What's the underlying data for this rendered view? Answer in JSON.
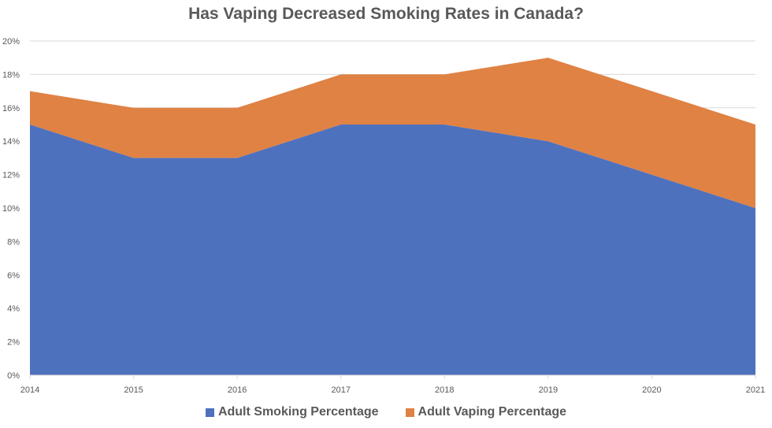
{
  "title": "Has Vaping Decreased Smoking Rates in Canada?",
  "legend": [
    {
      "label": "Adult Smoking Percentage",
      "color": "#4e71be"
    },
    {
      "label": "Adult Vaping Percentage",
      "color": "#df8244"
    }
  ],
  "chart_data": {
    "type": "area",
    "stacked": true,
    "title": "Has Vaping Decreased Smoking Rates in Canada?",
    "xlabel": "",
    "ylabel": "",
    "categories": [
      "2014",
      "2015",
      "2016",
      "2017",
      "2018",
      "2019",
      "2020",
      "2021"
    ],
    "series": [
      {
        "name": "Adult Smoking Percentage",
        "color": "#4e71be",
        "values": [
          15,
          13,
          13,
          15,
          15,
          14,
          12,
          10
        ]
      },
      {
        "name": "Adult Vaping Percentage",
        "color": "#df8244",
        "values": [
          2,
          3,
          3,
          3,
          3,
          5,
          5,
          5
        ]
      }
    ],
    "ylim": [
      0,
      20
    ],
    "yticks": [
      "0%",
      "2%",
      "4%",
      "6%",
      "8%",
      "10%",
      "12%",
      "14%",
      "16%",
      "18%",
      "20%"
    ],
    "grid": true,
    "legend_position": "bottom"
  }
}
